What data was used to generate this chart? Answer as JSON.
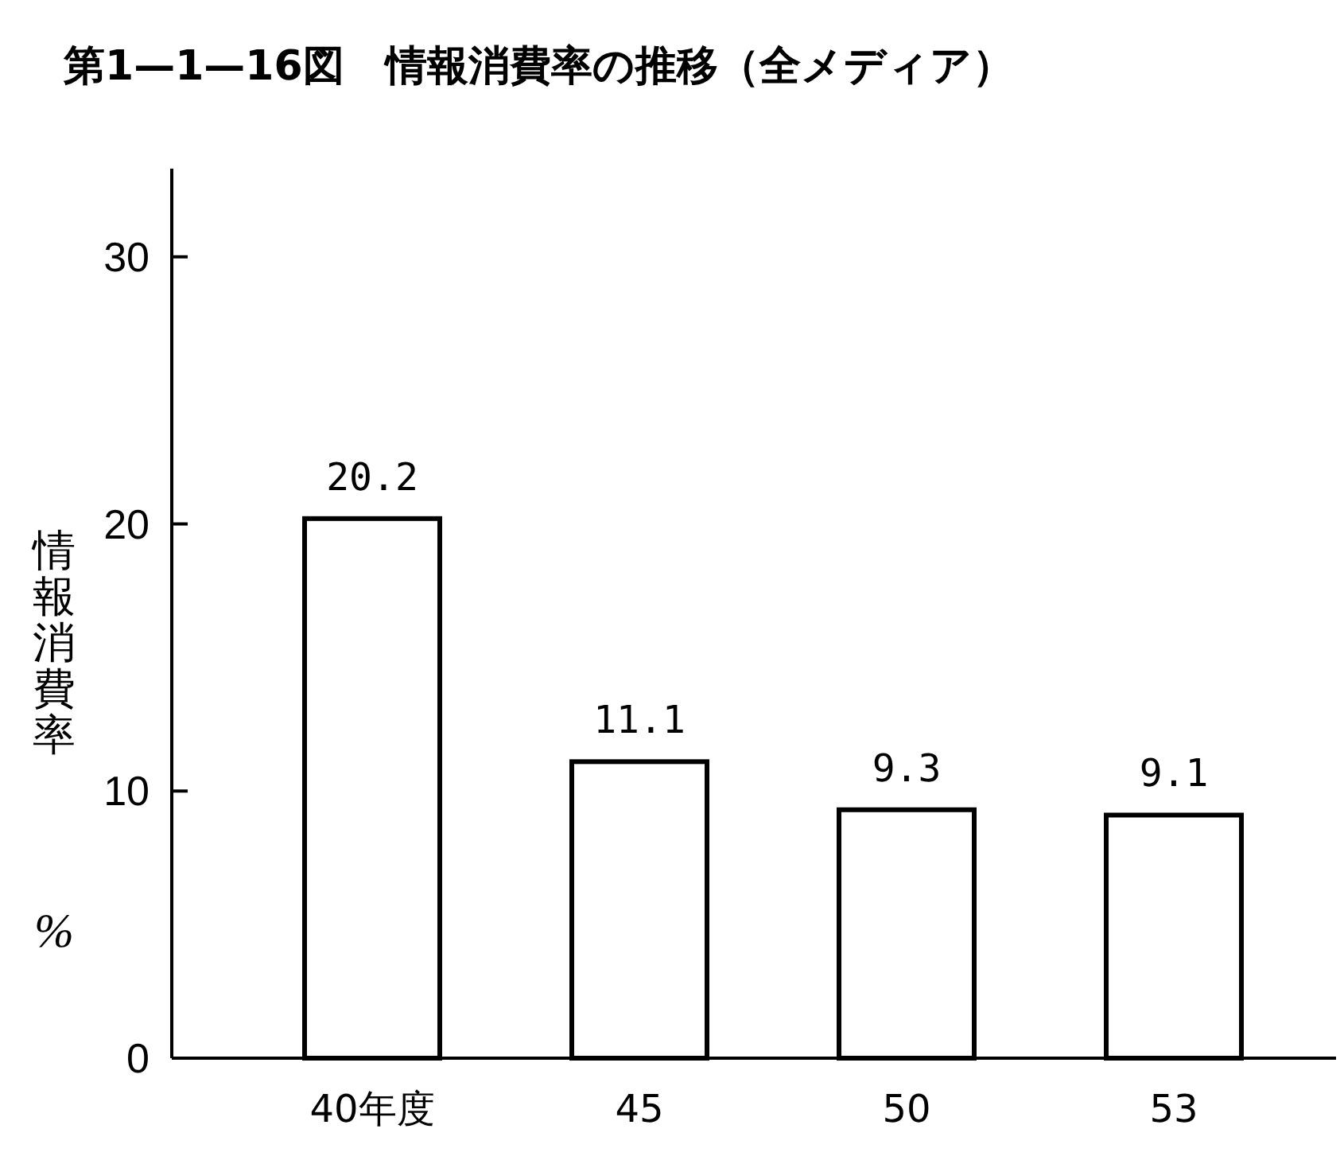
{
  "chart_data": {
    "type": "bar",
    "title": "第1—1—16図　情報消費率の推移（全メディア）",
    "ylabel": "情報消費率",
    "annotations": [
      "%"
    ],
    "categories": [
      "40年度",
      "45",
      "50",
      "53"
    ],
    "values": [
      20.2,
      11.1,
      9.3,
      9.1
    ],
    "color": "#ffffff",
    "ylim": [
      0,
      33.3
    ],
    "yticks": [
      0,
      10,
      20,
      30
    ],
    "data_labels": true,
    "grid": false
  }
}
